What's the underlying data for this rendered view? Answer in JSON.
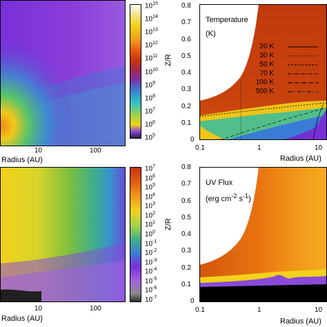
{
  "chart_data": [
    {
      "type": "heatmap",
      "panel": "top-left",
      "xlabel": "Radius (AU)",
      "xticks": [
        "10",
        "100"
      ],
      "xscale": "log",
      "colorbar": {
        "scale": "log",
        "ticks": [
          "10^15",
          "10^14",
          "10^13",
          "10^12",
          "10^11",
          "10^10",
          "10^9",
          "10^8",
          "10^7",
          "10^6",
          "10^5"
        ]
      }
    },
    {
      "type": "heatmap",
      "panel": "top-right",
      "title": "Temperature",
      "subtitle": "(K)",
      "xlabel": "Radius (AU)",
      "ylabel": "Z/R",
      "xscale": "log",
      "xticks": [
        "0.1",
        "1",
        "10"
      ],
      "yticks": [
        "0",
        "0.1",
        "0.2",
        "0.3",
        "0.4",
        "0.5",
        "0.6",
        "0.7",
        "0.8"
      ],
      "ylim": [
        0,
        0.8
      ],
      "contours": [
        {
          "name": "20 K",
          "style": "solid"
        },
        {
          "name": "30 K",
          "style": "dotted"
        },
        {
          "name": "50 K",
          "style": "short-dash"
        },
        {
          "name": "70 K",
          "style": "dash-dot"
        },
        {
          "name": "100 K",
          "style": "long-dash"
        },
        {
          "name": "500 K",
          "style": "dash-dot-dot"
        }
      ]
    },
    {
      "type": "heatmap",
      "panel": "bottom-left",
      "xlabel": "Radius (AU)",
      "xticks": [
        "10",
        "100"
      ],
      "xscale": "log",
      "colorbar": {
        "scale": "log",
        "ticks": [
          "10^7",
          "10^6",
          "10^5",
          "10^4",
          "10^3",
          "10^2",
          "10^1",
          "10^0",
          "10^-1",
          "10^-2",
          "10^-3",
          "10^-4",
          "10^-5",
          "10^-6",
          "10^-7"
        ]
      }
    },
    {
      "type": "heatmap",
      "panel": "bottom-right",
      "title": "UV Flux",
      "unit_parts": [
        "(erg cm",
        "-2",
        " s",
        "-1",
        ")"
      ],
      "xlabel": "Radius (AU)",
      "ylabel": "Z/R",
      "xscale": "log",
      "xticks": [
        "0.1",
        "1",
        "10"
      ],
      "yticks": [
        "0",
        "0.1",
        "0.2",
        "0.3",
        "0.4",
        "0.5",
        "0.6",
        "0.7",
        "0.8"
      ],
      "ylim": [
        0,
        0.8
      ]
    }
  ],
  "colors": {
    "purple": "#7b2fd6",
    "blue": "#3a7bd5",
    "cyan": "#33c6c0",
    "green": "#7fbf3f",
    "yellow": "#f2d21a",
    "orange": "#f08a17",
    "red": "#c8420d",
    "black": "#000000"
  }
}
